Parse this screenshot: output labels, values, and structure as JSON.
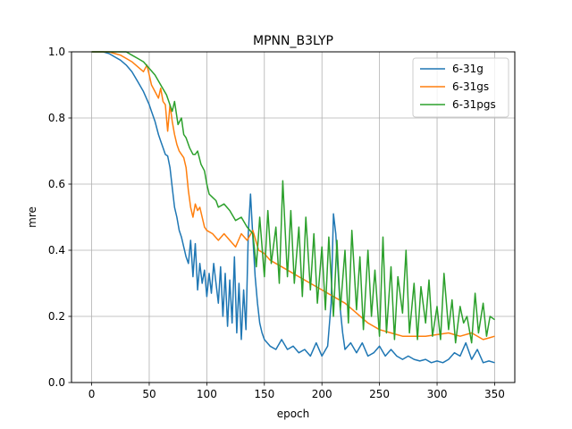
{
  "chart_data": {
    "type": "line",
    "title": "MPNN_B3LYP",
    "xlabel": "epoch",
    "ylabel": "mre",
    "xlim": [
      -17.5,
      367.5
    ],
    "ylim": [
      0.0,
      1.0
    ],
    "xticks": [
      0,
      50,
      100,
      150,
      200,
      250,
      300,
      350
    ],
    "yticks": [
      0.0,
      0.2,
      0.4,
      0.6,
      0.8,
      1.0
    ],
    "xtick_labels": [
      "0",
      "50",
      "100",
      "150",
      "200",
      "250",
      "300",
      "350"
    ],
    "ytick_labels": [
      "0.0",
      "0.2",
      "0.4",
      "0.6",
      "0.8",
      "1.0"
    ],
    "grid": true,
    "legend_position": "top-right",
    "series": [
      {
        "name": "6-31g",
        "color": "#1f77b4",
        "x": [
          0,
          10,
          15,
          20,
          25,
          30,
          35,
          40,
          45,
          50,
          52,
          55,
          58,
          60,
          62,
          64,
          66,
          68,
          70,
          72,
          74,
          76,
          78,
          80,
          82,
          84,
          86,
          88,
          90,
          92,
          94,
          96,
          98,
          100,
          102,
          104,
          106,
          108,
          110,
          112,
          114,
          116,
          118,
          120,
          122,
          124,
          126,
          128,
          130,
          132,
          134,
          136,
          138,
          140,
          142,
          144,
          146,
          148,
          150,
          155,
          160,
          165,
          170,
          175,
          180,
          185,
          190,
          195,
          200,
          205,
          208,
          210,
          212,
          214,
          216,
          218,
          220,
          225,
          230,
          235,
          240,
          245,
          250,
          255,
          260,
          265,
          270,
          275,
          280,
          285,
          290,
          295,
          300,
          305,
          310,
          315,
          320,
          325,
          330,
          335,
          340,
          345,
          350
        ],
        "y": [
          1.0,
          1.0,
          0.995,
          0.985,
          0.975,
          0.96,
          0.94,
          0.91,
          0.88,
          0.84,
          0.82,
          0.79,
          0.75,
          0.73,
          0.71,
          0.69,
          0.685,
          0.65,
          0.59,
          0.53,
          0.5,
          0.46,
          0.44,
          0.41,
          0.38,
          0.36,
          0.43,
          0.32,
          0.42,
          0.28,
          0.36,
          0.3,
          0.34,
          0.26,
          0.33,
          0.27,
          0.36,
          0.3,
          0.24,
          0.35,
          0.2,
          0.33,
          0.17,
          0.31,
          0.18,
          0.38,
          0.15,
          0.3,
          0.13,
          0.28,
          0.16,
          0.45,
          0.57,
          0.44,
          0.32,
          0.24,
          0.18,
          0.15,
          0.13,
          0.11,
          0.1,
          0.13,
          0.1,
          0.11,
          0.09,
          0.1,
          0.08,
          0.12,
          0.08,
          0.11,
          0.24,
          0.51,
          0.45,
          0.34,
          0.22,
          0.15,
          0.1,
          0.12,
          0.09,
          0.12,
          0.08,
          0.09,
          0.11,
          0.08,
          0.1,
          0.08,
          0.07,
          0.08,
          0.07,
          0.065,
          0.07,
          0.06,
          0.065,
          0.06,
          0.07,
          0.09,
          0.08,
          0.12,
          0.07,
          0.1,
          0.06,
          0.065,
          0.06
        ]
      },
      {
        "name": "6-31gs",
        "color": "#ff7f0e",
        "x": [
          0,
          10,
          15,
          20,
          25,
          30,
          35,
          40,
          45,
          48,
          50,
          52,
          55,
          58,
          60,
          62,
          64,
          66,
          68,
          70,
          72,
          74,
          76,
          78,
          80,
          82,
          84,
          86,
          88,
          90,
          92,
          94,
          96,
          98,
          100,
          105,
          110,
          115,
          120,
          125,
          130,
          135,
          140,
          145,
          150,
          155,
          160,
          170,
          180,
          190,
          200,
          210,
          220,
          230,
          240,
          250,
          260,
          270,
          280,
          290,
          300,
          310,
          320,
          330,
          340,
          345,
          350
        ],
        "y": [
          1.0,
          1.0,
          1.0,
          0.995,
          0.99,
          0.98,
          0.97,
          0.955,
          0.94,
          0.96,
          0.93,
          0.9,
          0.88,
          0.86,
          0.89,
          0.85,
          0.84,
          0.76,
          0.84,
          0.79,
          0.75,
          0.72,
          0.7,
          0.69,
          0.68,
          0.65,
          0.58,
          0.53,
          0.5,
          0.54,
          0.52,
          0.53,
          0.5,
          0.47,
          0.46,
          0.45,
          0.43,
          0.45,
          0.43,
          0.41,
          0.45,
          0.43,
          0.46,
          0.4,
          0.39,
          0.37,
          0.36,
          0.34,
          0.32,
          0.3,
          0.28,
          0.26,
          0.24,
          0.21,
          0.18,
          0.16,
          0.15,
          0.14,
          0.14,
          0.14,
          0.145,
          0.15,
          0.14,
          0.15,
          0.13,
          0.135,
          0.14
        ]
      },
      {
        "name": "6-31pgs",
        "color": "#2ca02c",
        "x": [
          0,
          10,
          15,
          20,
          25,
          30,
          35,
          40,
          45,
          50,
          55,
          60,
          65,
          70,
          72,
          75,
          78,
          80,
          82,
          85,
          88,
          90,
          92,
          95,
          98,
          100,
          102,
          105,
          108,
          110,
          115,
          120,
          125,
          130,
          135,
          140,
          143,
          146,
          150,
          153,
          156,
          160,
          163,
          166,
          170,
          173,
          176,
          180,
          183,
          186,
          190,
          193,
          196,
          200,
          203,
          206,
          210,
          213,
          216,
          220,
          223,
          226,
          230,
          233,
          236,
          240,
          243,
          246,
          250,
          253,
          256,
          260,
          263,
          266,
          270,
          273,
          276,
          280,
          283,
          286,
          290,
          293,
          296,
          300,
          303,
          306,
          310,
          313,
          316,
          320,
          323,
          326,
          330,
          333,
          336,
          340,
          343,
          346,
          350
        ],
        "y": [
          1.0,
          1.0,
          1.0,
          1.0,
          1.0,
          1.0,
          0.99,
          0.98,
          0.97,
          0.95,
          0.93,
          0.9,
          0.87,
          0.82,
          0.85,
          0.78,
          0.8,
          0.75,
          0.74,
          0.71,
          0.69,
          0.69,
          0.7,
          0.66,
          0.64,
          0.6,
          0.57,
          0.56,
          0.55,
          0.53,
          0.54,
          0.52,
          0.49,
          0.5,
          0.47,
          0.45,
          0.35,
          0.5,
          0.32,
          0.52,
          0.36,
          0.47,
          0.3,
          0.61,
          0.32,
          0.52,
          0.3,
          0.47,
          0.26,
          0.5,
          0.28,
          0.45,
          0.24,
          0.41,
          0.22,
          0.44,
          0.2,
          0.43,
          0.22,
          0.4,
          0.18,
          0.46,
          0.22,
          0.38,
          0.16,
          0.4,
          0.2,
          0.34,
          0.14,
          0.44,
          0.15,
          0.35,
          0.13,
          0.32,
          0.21,
          0.4,
          0.15,
          0.3,
          0.13,
          0.29,
          0.18,
          0.31,
          0.14,
          0.23,
          0.13,
          0.33,
          0.16,
          0.25,
          0.12,
          0.23,
          0.18,
          0.2,
          0.12,
          0.27,
          0.15,
          0.24,
          0.14,
          0.2,
          0.19
        ]
      }
    ]
  }
}
